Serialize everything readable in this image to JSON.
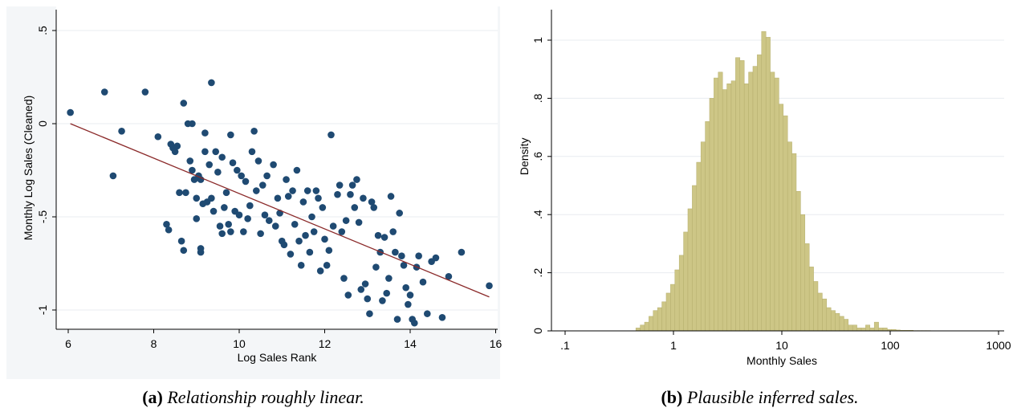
{
  "captions": [
    {
      "label": "(a)",
      "text": "Relationship roughly linear."
    },
    {
      "label": "(b)",
      "text": "Plausible inferred sales."
    }
  ],
  "colors": {
    "dots": "#1f4a72",
    "fit_line": "#8b2a2a",
    "bars": "#cdc686",
    "bar_edge": "#b5ae6c",
    "grid": "#e8ecf0",
    "frame_bg": "#f4f6f8"
  },
  "chart_data": [
    {
      "type": "scatter",
      "title": "",
      "xlabel": "Log Sales Rank",
      "ylabel": "Monthly Log Sales (Cleaned)",
      "xlim": [
        6,
        16
      ],
      "ylim": [
        -1.1,
        0.55
      ],
      "xticks": [
        6,
        8,
        10,
        12,
        14,
        16
      ],
      "xtick_labels": [
        "6",
        "8",
        "10",
        "12",
        "14",
        "16"
      ],
      "yticks": [
        0.5,
        0,
        -0.5,
        -1
      ],
      "ytick_labels": [
        ".5",
        "0",
        "-.5",
        "-1"
      ],
      "grid": true,
      "fit_line": {
        "x": [
          6.05,
          15.85
        ],
        "y": [
          0.0,
          -0.93
        ]
      },
      "points": [
        [
          6.05,
          0.06
        ],
        [
          6.85,
          0.17
        ],
        [
          7.8,
          0.17
        ],
        [
          7.05,
          -0.28
        ],
        [
          7.25,
          -0.04
        ],
        [
          8.1,
          -0.07
        ],
        [
          8.3,
          -0.54
        ],
        [
          8.4,
          -0.11
        ],
        [
          8.45,
          -0.13
        ],
        [
          8.5,
          -0.15
        ],
        [
          8.55,
          -0.12
        ],
        [
          8.35,
          -0.57
        ],
        [
          8.6,
          -0.37
        ],
        [
          8.65,
          -0.63
        ],
        [
          8.7,
          -0.68
        ],
        [
          8.7,
          0.11
        ],
        [
          8.75,
          -0.37
        ],
        [
          8.8,
          0.0
        ],
        [
          8.85,
          -0.2
        ],
        [
          8.9,
          0.0
        ],
        [
          8.9,
          -0.25
        ],
        [
          8.95,
          -0.3
        ],
        [
          9.0,
          -0.4
        ],
        [
          9.0,
          -0.51
        ],
        [
          9.05,
          -0.28
        ],
        [
          9.1,
          -0.67
        ],
        [
          9.1,
          -0.69
        ],
        [
          9.1,
          -0.3
        ],
        [
          9.15,
          -0.43
        ],
        [
          9.2,
          -0.15
        ],
        [
          9.2,
          -0.05
        ],
        [
          9.25,
          -0.42
        ],
        [
          9.3,
          -0.22
        ],
        [
          9.35,
          0.22
        ],
        [
          9.35,
          -0.4
        ],
        [
          9.4,
          -0.47
        ],
        [
          9.45,
          -0.15
        ],
        [
          9.5,
          -0.26
        ],
        [
          9.55,
          -0.55
        ],
        [
          9.6,
          -0.18
        ],
        [
          9.6,
          -0.59
        ],
        [
          9.65,
          -0.45
        ],
        [
          9.7,
          -0.37
        ],
        [
          9.75,
          -0.54
        ],
        [
          9.8,
          -0.58
        ],
        [
          9.8,
          -0.06
        ],
        [
          9.85,
          -0.21
        ],
        [
          9.9,
          -0.47
        ],
        [
          9.95,
          -0.25
        ],
        [
          10.0,
          -0.49
        ],
        [
          10.05,
          -0.28
        ],
        [
          10.1,
          -0.58
        ],
        [
          10.15,
          -0.31
        ],
        [
          10.2,
          -0.51
        ],
        [
          10.25,
          -0.44
        ],
        [
          10.3,
          -0.15
        ],
        [
          10.35,
          -0.04
        ],
        [
          10.4,
          -0.36
        ],
        [
          10.45,
          -0.2
        ],
        [
          10.5,
          -0.59
        ],
        [
          10.55,
          -0.33
        ],
        [
          10.6,
          -0.49
        ],
        [
          10.65,
          -0.28
        ],
        [
          10.7,
          -0.52
        ],
        [
          10.8,
          -0.22
        ],
        [
          10.85,
          -0.55
        ],
        [
          10.9,
          -0.4
        ],
        [
          10.95,
          -0.48
        ],
        [
          11.0,
          -0.63
        ],
        [
          11.05,
          -0.65
        ],
        [
          11.1,
          -0.3
        ],
        [
          11.15,
          -0.39
        ],
        [
          11.2,
          -0.7
        ],
        [
          11.25,
          -0.36
        ],
        [
          11.3,
          -0.54
        ],
        [
          11.35,
          -0.25
        ],
        [
          11.4,
          -0.63
        ],
        [
          11.45,
          -0.76
        ],
        [
          11.5,
          -0.42
        ],
        [
          11.55,
          -0.6
        ],
        [
          11.6,
          -0.36
        ],
        [
          11.65,
          -0.69
        ],
        [
          11.7,
          -0.5
        ],
        [
          11.75,
          -0.58
        ],
        [
          11.8,
          -0.36
        ],
        [
          11.85,
          -0.4
        ],
        [
          11.9,
          -0.79
        ],
        [
          11.95,
          -0.45
        ],
        [
          12.0,
          -0.62
        ],
        [
          12.05,
          -0.76
        ],
        [
          12.1,
          -0.68
        ],
        [
          12.15,
          -0.06
        ],
        [
          12.2,
          -0.55
        ],
        [
          12.3,
          -0.38
        ],
        [
          12.35,
          -0.33
        ],
        [
          12.4,
          -0.58
        ],
        [
          12.45,
          -0.83
        ],
        [
          12.5,
          -0.52
        ],
        [
          12.55,
          -0.92
        ],
        [
          12.6,
          -0.38
        ],
        [
          12.65,
          -0.33
        ],
        [
          12.7,
          -0.45
        ],
        [
          12.75,
          -0.3
        ],
        [
          12.8,
          -0.53
        ],
        [
          12.85,
          -0.89
        ],
        [
          12.9,
          -0.4
        ],
        [
          12.95,
          -0.86
        ],
        [
          13.0,
          -0.94
        ],
        [
          13.05,
          -1.02
        ],
        [
          13.1,
          -0.42
        ],
        [
          13.15,
          -0.45
        ],
        [
          13.2,
          -0.77
        ],
        [
          13.25,
          -0.6
        ],
        [
          13.3,
          -0.69
        ],
        [
          13.35,
          -0.95
        ],
        [
          13.4,
          -0.61
        ],
        [
          13.45,
          -0.91
        ],
        [
          13.5,
          -0.83
        ],
        [
          13.55,
          -0.39
        ],
        [
          13.6,
          -0.58
        ],
        [
          13.65,
          -0.69
        ],
        [
          13.7,
          -1.05
        ],
        [
          13.75,
          -0.48
        ],
        [
          13.8,
          -0.71
        ],
        [
          13.85,
          -0.76
        ],
        [
          13.9,
          -0.88
        ],
        [
          13.95,
          -0.97
        ],
        [
          14.0,
          -0.92
        ],
        [
          14.05,
          -1.05
        ],
        [
          14.1,
          -1.07
        ],
        [
          14.15,
          -0.77
        ],
        [
          14.2,
          -0.71
        ],
        [
          14.3,
          -0.85
        ],
        [
          14.4,
          -1.02
        ],
        [
          14.5,
          -0.74
        ],
        [
          14.6,
          -0.72
        ],
        [
          14.75,
          -1.04
        ],
        [
          14.9,
          -0.82
        ],
        [
          15.2,
          -0.69
        ],
        [
          15.85,
          -0.87
        ]
      ]
    },
    {
      "type": "bar",
      "title": "",
      "xlabel": "Monthly Sales",
      "ylabel": "Density",
      "x_scale": "log",
      "xlim": [
        0.1,
        1000
      ],
      "ylim": [
        0,
        1.05
      ],
      "xticks": [
        0.1,
        1,
        10,
        100,
        1000
      ],
      "xtick_labels": [
        ".1",
        "1",
        "10",
        "100",
        "1000"
      ],
      "yticks": [
        0,
        0.2,
        0.4,
        0.6,
        0.8,
        1
      ],
      "ytick_labels": [
        "0",
        ".2",
        ".4",
        ".6",
        ".8",
        "1"
      ],
      "grid": true,
      "bin_start": 0.45,
      "bin_width_log10": 0.04,
      "values": [
        0.01,
        0.02,
        0.03,
        0.05,
        0.07,
        0.08,
        0.1,
        0.13,
        0.16,
        0.21,
        0.26,
        0.34,
        0.42,
        0.5,
        0.58,
        0.65,
        0.72,
        0.8,
        0.87,
        0.89,
        0.83,
        0.85,
        0.86,
        0.94,
        0.93,
        0.85,
        0.89,
        0.91,
        0.95,
        1.03,
        1.01,
        0.89,
        0.87,
        0.78,
        0.74,
        0.65,
        0.61,
        0.48,
        0.4,
        0.3,
        0.22,
        0.17,
        0.13,
        0.11,
        0.08,
        0.07,
        0.06,
        0.05,
        0.04,
        0.02,
        0.02,
        0.01,
        0.01,
        0.02,
        0.01,
        0.03,
        0.01,
        0.01,
        0.005,
        0.005,
        0.003,
        0.002,
        0.002,
        0.002,
        0.001,
        0.001,
        0.001,
        0.001
      ]
    }
  ]
}
